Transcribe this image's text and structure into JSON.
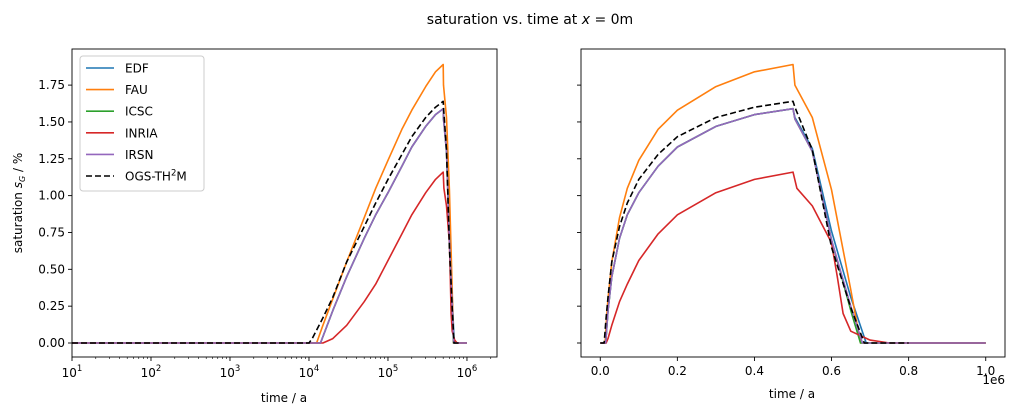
{
  "chart_data": [
    {
      "type": "line",
      "title": "saturation vs. time at x = 0m",
      "title_parts": {
        "prefix": "saturation vs. time at ",
        "var": "x",
        "suffix": " = 0m"
      },
      "xscale": "log",
      "xlim": [
        10,
        2400000
      ],
      "ylim": [
        -0.095,
        1.995
      ],
      "xlabel": "time / a",
      "ylabel": "saturation s_G / %",
      "ylabel_parts": {
        "prefix": "saturation ",
        "var": "s",
        "sub": "G",
        "suffix": " / %"
      },
      "xticks": [
        {
          "v": 10,
          "base": "10",
          "exp": "1"
        },
        {
          "v": 100,
          "base": "10",
          "exp": "2"
        },
        {
          "v": 1000,
          "base": "10",
          "exp": "3"
        },
        {
          "v": 10000,
          "base": "10",
          "exp": "4"
        },
        {
          "v": 100000,
          "base": "10",
          "exp": "5"
        },
        {
          "v": 1000000,
          "base": "10",
          "exp": "6"
        }
      ],
      "yticks": [
        {
          "v": 0,
          "label": "0.00"
        },
        {
          "v": 0.25,
          "label": "0.25"
        },
        {
          "v": 0.5,
          "label": "0.50"
        },
        {
          "v": 0.75,
          "label": "0.75"
        },
        {
          "v": 1.0,
          "label": "1.00"
        },
        {
          "v": 1.25,
          "label": "1.25"
        },
        {
          "v": 1.5,
          "label": "1.50"
        },
        {
          "v": 1.75,
          "label": "1.75"
        }
      ],
      "legend": {
        "placement": "upper-left"
      }
    },
    {
      "type": "line",
      "xscale": "linear",
      "xlim": [
        -50000,
        1050000
      ],
      "ylim": [
        -0.095,
        1.995
      ],
      "xlabel": "time / a",
      "x_offset_label": "1e6",
      "xticks": [
        {
          "v": 0,
          "label": "0.0"
        },
        {
          "v": 200000,
          "label": "0.2"
        },
        {
          "v": 400000,
          "label": "0.4"
        },
        {
          "v": 600000,
          "label": "0.6"
        },
        {
          "v": 800000,
          "label": "0.8"
        },
        {
          "v": 1000000,
          "label": "1.0"
        }
      ],
      "yticks_shared": true
    }
  ],
  "series": [
    {
      "name": "EDF",
      "color": "#1f77b4",
      "dash": false,
      "points": [
        [
          10,
          0
        ],
        [
          14000,
          0
        ],
        [
          20000,
          0.22
        ],
        [
          30000,
          0.45
        ],
        [
          50000,
          0.71
        ],
        [
          70000,
          0.87
        ],
        [
          100000,
          1.02
        ],
        [
          150000,
          1.2
        ],
        [
          200000,
          1.33
        ],
        [
          300000,
          1.47
        ],
        [
          400000,
          1.55
        ],
        [
          500000,
          1.59
        ],
        [
          505000,
          1.53
        ],
        [
          550000,
          1.32
        ],
        [
          600000,
          0.76
        ],
        [
          650000,
          0.31
        ],
        [
          690000,
          0
        ],
        [
          1000000,
          0
        ]
      ]
    },
    {
      "name": "FAU",
      "color": "#ff7f0e",
      "dash": false,
      "points": [
        [
          10,
          0
        ],
        [
          12500,
          0
        ],
        [
          15000,
          0.12
        ],
        [
          20000,
          0.3
        ],
        [
          30000,
          0.55
        ],
        [
          50000,
          0.85
        ],
        [
          70000,
          1.05
        ],
        [
          100000,
          1.24
        ],
        [
          150000,
          1.45
        ],
        [
          200000,
          1.58
        ],
        [
          300000,
          1.74
        ],
        [
          400000,
          1.84
        ],
        [
          500000,
          1.89
        ],
        [
          505000,
          1.75
        ],
        [
          550000,
          1.53
        ],
        [
          600000,
          1.04
        ],
        [
          650000,
          0.36
        ],
        [
          675000,
          0
        ],
        [
          1000000,
          0
        ]
      ]
    },
    {
      "name": "ICSC",
      "color": "#2ca02c",
      "dash": false,
      "points": [
        [
          10,
          0
        ],
        [
          14000,
          0
        ],
        [
          20000,
          0.22
        ],
        [
          30000,
          0.45
        ],
        [
          50000,
          0.71
        ],
        [
          70000,
          0.87
        ],
        [
          100000,
          1.02
        ],
        [
          150000,
          1.2
        ],
        [
          200000,
          1.33
        ],
        [
          300000,
          1.47
        ],
        [
          400000,
          1.55
        ],
        [
          500000,
          1.59
        ],
        [
          505000,
          1.52
        ],
        [
          550000,
          1.3
        ],
        [
          600000,
          0.7
        ],
        [
          650000,
          0.22
        ],
        [
          675000,
          0
        ],
        [
          1000000,
          0
        ]
      ]
    },
    {
      "name": "INRIA",
      "color": "#d62728",
      "dash": false,
      "points": [
        [
          10,
          0
        ],
        [
          15000,
          0
        ],
        [
          20000,
          0.03
        ],
        [
          30000,
          0.12
        ],
        [
          50000,
          0.28
        ],
        [
          70000,
          0.4
        ],
        [
          100000,
          0.56
        ],
        [
          150000,
          0.74
        ],
        [
          200000,
          0.87
        ],
        [
          300000,
          1.02
        ],
        [
          400000,
          1.11
        ],
        [
          500000,
          1.16
        ],
        [
          510000,
          1.05
        ],
        [
          550000,
          0.93
        ],
        [
          600000,
          0.68
        ],
        [
          615000,
          0.45
        ],
        [
          630000,
          0.2
        ],
        [
          650000,
          0.08
        ],
        [
          700000,
          0.02
        ],
        [
          750000,
          0
        ],
        [
          1000000,
          0
        ]
      ]
    },
    {
      "name": "IRSN",
      "color": "#9467bd",
      "dash": false,
      "points": [
        [
          10,
          0
        ],
        [
          14000,
          0
        ],
        [
          20000,
          0.22
        ],
        [
          30000,
          0.45
        ],
        [
          50000,
          0.71
        ],
        [
          70000,
          0.87
        ],
        [
          100000,
          1.02
        ],
        [
          150000,
          1.2
        ],
        [
          200000,
          1.33
        ],
        [
          300000,
          1.47
        ],
        [
          400000,
          1.55
        ],
        [
          500000,
          1.59
        ],
        [
          505000,
          1.52
        ],
        [
          550000,
          1.3
        ],
        [
          600000,
          0.7
        ],
        [
          650000,
          0.25
        ],
        [
          680000,
          0
        ],
        [
          1000000,
          0
        ]
      ]
    },
    {
      "name": "OGS-TH²M",
      "legend_parts": {
        "prefix": "OGS-TH",
        "sup": "2",
        "suffix": "M"
      },
      "color": "#000000",
      "dash": true,
      "points": [
        [
          10,
          0
        ],
        [
          10000,
          0
        ],
        [
          11000,
          0.03
        ],
        [
          15000,
          0.17
        ],
        [
          20000,
          0.31
        ],
        [
          30000,
          0.55
        ],
        [
          50000,
          0.79
        ],
        [
          70000,
          0.95
        ],
        [
          100000,
          1.11
        ],
        [
          150000,
          1.28
        ],
        [
          200000,
          1.4
        ],
        [
          300000,
          1.53
        ],
        [
          400000,
          1.6
        ],
        [
          500000,
          1.64
        ],
        [
          505000,
          1.6
        ],
        [
          550000,
          1.31
        ],
        [
          600000,
          0.65
        ],
        [
          650000,
          0.24
        ],
        [
          685000,
          0
        ],
        [
          800000,
          0
        ]
      ]
    }
  ]
}
